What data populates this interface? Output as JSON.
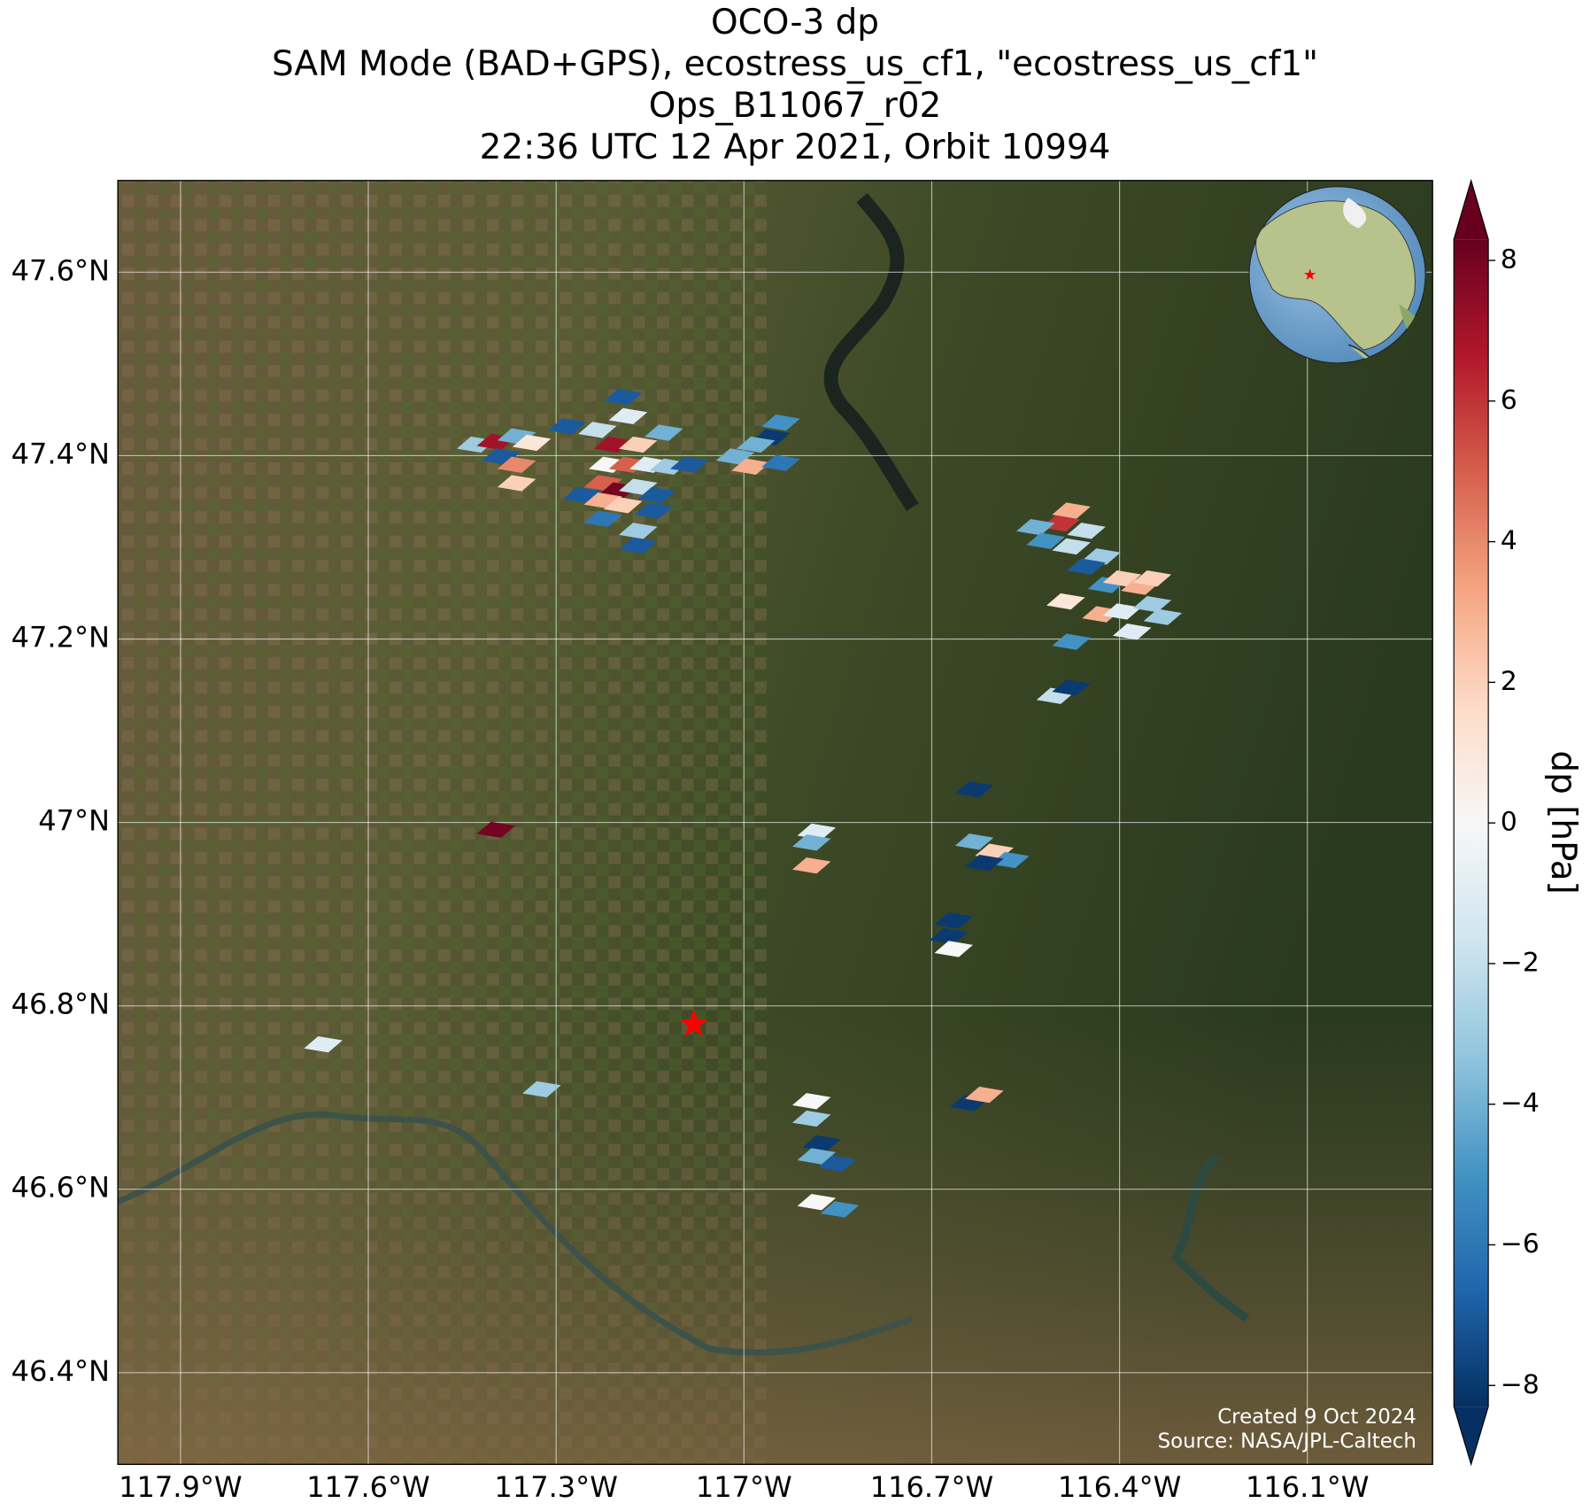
{
  "chart_data": {
    "type": "map",
    "title_lines": [
      "OCO-3 dp",
      "SAM Mode (BAD+GPS), ecostress_us_cf1, \"ecostress_us_cf1\"",
      "Ops_B11067_r02",
      "22:36 UTC 12 Apr 2021, Orbit 10994"
    ],
    "xlim": [
      -118.0,
      -115.9
    ],
    "ylim": [
      46.3,
      47.7
    ],
    "xticks": [
      {
        "value": -117.9,
        "label": "117.9°W"
      },
      {
        "value": -117.6,
        "label": "117.6°W"
      },
      {
        "value": -117.3,
        "label": "117.3°W"
      },
      {
        "value": -117.0,
        "label": "117°W"
      },
      {
        "value": -116.7,
        "label": "116.7°W"
      },
      {
        "value": -116.4,
        "label": "116.4°W"
      },
      {
        "value": -116.1,
        "label": "116.1°W"
      }
    ],
    "yticks": [
      {
        "value": 46.4,
        "label": "46.4°N"
      },
      {
        "value": 46.6,
        "label": "46.6°N"
      },
      {
        "value": 46.8,
        "label": "46.8°N"
      },
      {
        "value": 47.0,
        "label": "47°N"
      },
      {
        "value": 47.2,
        "label": "47.2°N"
      },
      {
        "value": 47.4,
        "label": "47.4°N"
      },
      {
        "value": 47.6,
        "label": "47.6°N"
      }
    ],
    "grid": true,
    "colormap": "RdBu_r",
    "clim": [
      -8.3,
      8.3
    ],
    "colorbar_label": "dp [hPa]",
    "colorbar_ticks": [
      {
        "value": -8,
        "label": "−8"
      },
      {
        "value": -6,
        "label": "−6"
      },
      {
        "value": -4,
        "label": "−4"
      },
      {
        "value": -2,
        "label": "−2"
      },
      0,
      2,
      4,
      6,
      8
    ],
    "target": {
      "lon": -117.08,
      "lat": 46.78,
      "color": "#ff0000"
    },
    "soundings": [
      {
        "lon": -117.428,
        "lat": 47.412,
        "dp": -3
      },
      {
        "lon": -117.396,
        "lat": 47.415,
        "dp": 7
      },
      {
        "lon": -117.363,
        "lat": 47.421,
        "dp": -4
      },
      {
        "lon": -117.339,
        "lat": 47.414,
        "dp": 1
      },
      {
        "lon": -117.388,
        "lat": 47.399,
        "dp": -7
      },
      {
        "lon": -117.363,
        "lat": 47.39,
        "dp": 4
      },
      {
        "lon": -117.363,
        "lat": 47.37,
        "dp": 2
      },
      {
        "lon": -117.193,
        "lat": 47.464,
        "dp": -7
      },
      {
        "lon": -117.185,
        "lat": 47.443,
        "dp": -1
      },
      {
        "lon": -117.282,
        "lat": 47.432,
        "dp": -7
      },
      {
        "lon": -117.234,
        "lat": 47.428,
        "dp": -2
      },
      {
        "lon": -117.209,
        "lat": 47.412,
        "dp": 7
      },
      {
        "lon": -117.169,
        "lat": 47.412,
        "dp": 2
      },
      {
        "lon": -117.128,
        "lat": 47.425,
        "dp": -4
      },
      {
        "lon": -117.217,
        "lat": 47.39,
        "dp": 0
      },
      {
        "lon": -117.185,
        "lat": 47.39,
        "dp": 5
      },
      {
        "lon": -117.152,
        "lat": 47.39,
        "dp": -1
      },
      {
        "lon": -117.12,
        "lat": 47.388,
        "dp": -3
      },
      {
        "lon": -117.087,
        "lat": 47.39,
        "dp": -7
      },
      {
        "lon": -117.225,
        "lat": 47.37,
        "dp": 5
      },
      {
        "lon": -117.201,
        "lat": 47.362,
        "dp": 8
      },
      {
        "lon": -117.169,
        "lat": 47.366,
        "dp": -2
      },
      {
        "lon": -117.139,
        "lat": 47.357,
        "dp": -7
      },
      {
        "lon": -117.258,
        "lat": 47.357,
        "dp": -7
      },
      {
        "lon": -117.225,
        "lat": 47.351,
        "dp": 3
      },
      {
        "lon": -117.193,
        "lat": 47.346,
        "dp": 2
      },
      {
        "lon": -117.144,
        "lat": 47.34,
        "dp": -7
      },
      {
        "lon": -117.225,
        "lat": 47.331,
        "dp": -6
      },
      {
        "lon": -117.169,
        "lat": 47.318,
        "dp": -3
      },
      {
        "lon": -117.169,
        "lat": 47.302,
        "dp": -7
      },
      {
        "lon": -116.941,
        "lat": 47.436,
        "dp": -5
      },
      {
        "lon": -116.957,
        "lat": 47.42,
        "dp": -8
      },
      {
        "lon": -116.981,
        "lat": 47.412,
        "dp": -4
      },
      {
        "lon": -117.014,
        "lat": 47.399,
        "dp": -4
      },
      {
        "lon": -116.989,
        "lat": 47.388,
        "dp": 3
      },
      {
        "lon": -116.941,
        "lat": 47.392,
        "dp": -6
      },
      {
        "lon": -116.477,
        "lat": 47.34,
        "dp": 3
      },
      {
        "lon": -116.494,
        "lat": 47.326,
        "dp": 6
      },
      {
        "lon": -116.534,
        "lat": 47.322,
        "dp": -4
      },
      {
        "lon": -116.453,
        "lat": 47.318,
        "dp": -2
      },
      {
        "lon": -116.429,
        "lat": 47.29,
        "dp": -3
      },
      {
        "lon": -116.518,
        "lat": 47.307,
        "dp": -5
      },
      {
        "lon": -116.477,
        "lat": 47.301,
        "dp": -2
      },
      {
        "lon": -116.453,
        "lat": 47.279,
        "dp": -7
      },
      {
        "lon": -116.42,
        "lat": 47.259,
        "dp": -5
      },
      {
        "lon": -116.396,
        "lat": 47.266,
        "dp": 2
      },
      {
        "lon": -116.367,
        "lat": 47.257,
        "dp": 3
      },
      {
        "lon": -116.348,
        "lat": 47.266,
        "dp": 2
      },
      {
        "lon": -116.486,
        "lat": 47.241,
        "dp": 1
      },
      {
        "lon": -116.429,
        "lat": 47.227,
        "dp": 3
      },
      {
        "lon": -116.396,
        "lat": 47.23,
        "dp": -1
      },
      {
        "lon": -116.348,
        "lat": 47.238,
        "dp": -3
      },
      {
        "lon": -116.331,
        "lat": 47.224,
        "dp": -3
      },
      {
        "lon": -116.38,
        "lat": 47.208,
        "dp": -1
      },
      {
        "lon": -116.477,
        "lat": 47.197,
        "dp": -5
      },
      {
        "lon": -116.502,
        "lat": 47.138,
        "dp": -2
      },
      {
        "lon": -116.477,
        "lat": 47.147,
        "dp": -8
      },
      {
        "lon": -116.632,
        "lat": 47.036,
        "dp": -8
      },
      {
        "lon": -117.396,
        "lat": 46.992,
        "dp": 8
      },
      {
        "lon": -116.884,
        "lat": 46.99,
        "dp": -1
      },
      {
        "lon": -116.892,
        "lat": 46.978,
        "dp": -4
      },
      {
        "lon": -116.892,
        "lat": 46.953,
        "dp": 3
      },
      {
        "lon": -116.632,
        "lat": 46.979,
        "dp": -4
      },
      {
        "lon": -116.6,
        "lat": 46.968,
        "dp": 2
      },
      {
        "lon": -116.575,
        "lat": 46.959,
        "dp": -5
      },
      {
        "lon": -116.616,
        "lat": 46.956,
        "dp": -8
      },
      {
        "lon": -116.665,
        "lat": 46.893,
        "dp": -8
      },
      {
        "lon": -116.673,
        "lat": 46.876,
        "dp": -8
      },
      {
        "lon": -116.665,
        "lat": 46.862,
        "dp": 0
      },
      {
        "lon": -117.672,
        "lat": 46.758,
        "dp": -1
      },
      {
        "lon": -117.323,
        "lat": 46.709,
        "dp": -3
      },
      {
        "lon": -116.892,
        "lat": 46.696,
        "dp": 0
      },
      {
        "lon": -116.892,
        "lat": 46.677,
        "dp": -3
      },
      {
        "lon": -116.876,
        "lat": 46.65,
        "dp": -8
      },
      {
        "lon": -116.884,
        "lat": 46.636,
        "dp": -4
      },
      {
        "lon": -116.851,
        "lat": 46.628,
        "dp": -7
      },
      {
        "lon": -116.64,
        "lat": 46.694,
        "dp": -8
      },
      {
        "lon": -116.616,
        "lat": 46.703,
        "dp": 3
      },
      {
        "lon": -116.884,
        "lat": 46.586,
        "dp": 0
      },
      {
        "lon": -116.847,
        "lat": 46.578,
        "dp": -5
      }
    ],
    "credit_lines": [
      "Created 9 Oct 2024",
      "Source: NASA/JPL-Caltech"
    ]
  }
}
